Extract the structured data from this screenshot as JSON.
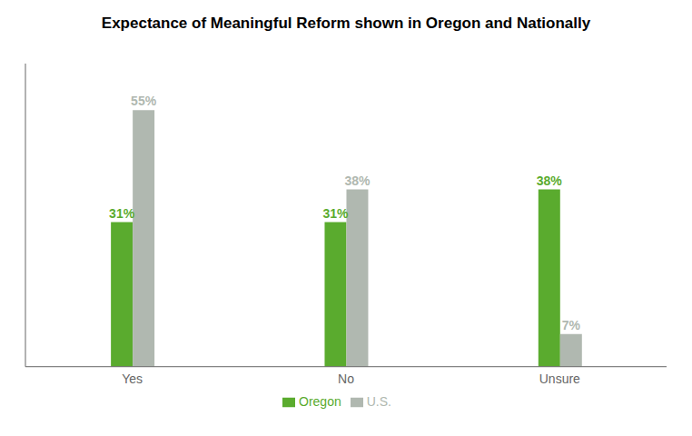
{
  "chart_data": {
    "type": "bar",
    "title": "Expectance of Meaningful Reform shown in Oregon and Nationally",
    "categories": [
      "Yes",
      "No",
      "Unsure"
    ],
    "series": [
      {
        "name": "Oregon",
        "color": "#5aab2e",
        "values": [
          31,
          31,
          38
        ],
        "value_labels": [
          "31%",
          "31%",
          "38%"
        ]
      },
      {
        "name": "U.S.",
        "color": "#b0b8b0",
        "values": [
          55,
          38,
          7
        ],
        "value_labels": [
          "55%",
          "38%",
          "7%"
        ]
      }
    ],
    "ylim": [
      0,
      65
    ],
    "grid": false,
    "legend": "bottom",
    "data_labels": true,
    "tick_labels": "x"
  }
}
